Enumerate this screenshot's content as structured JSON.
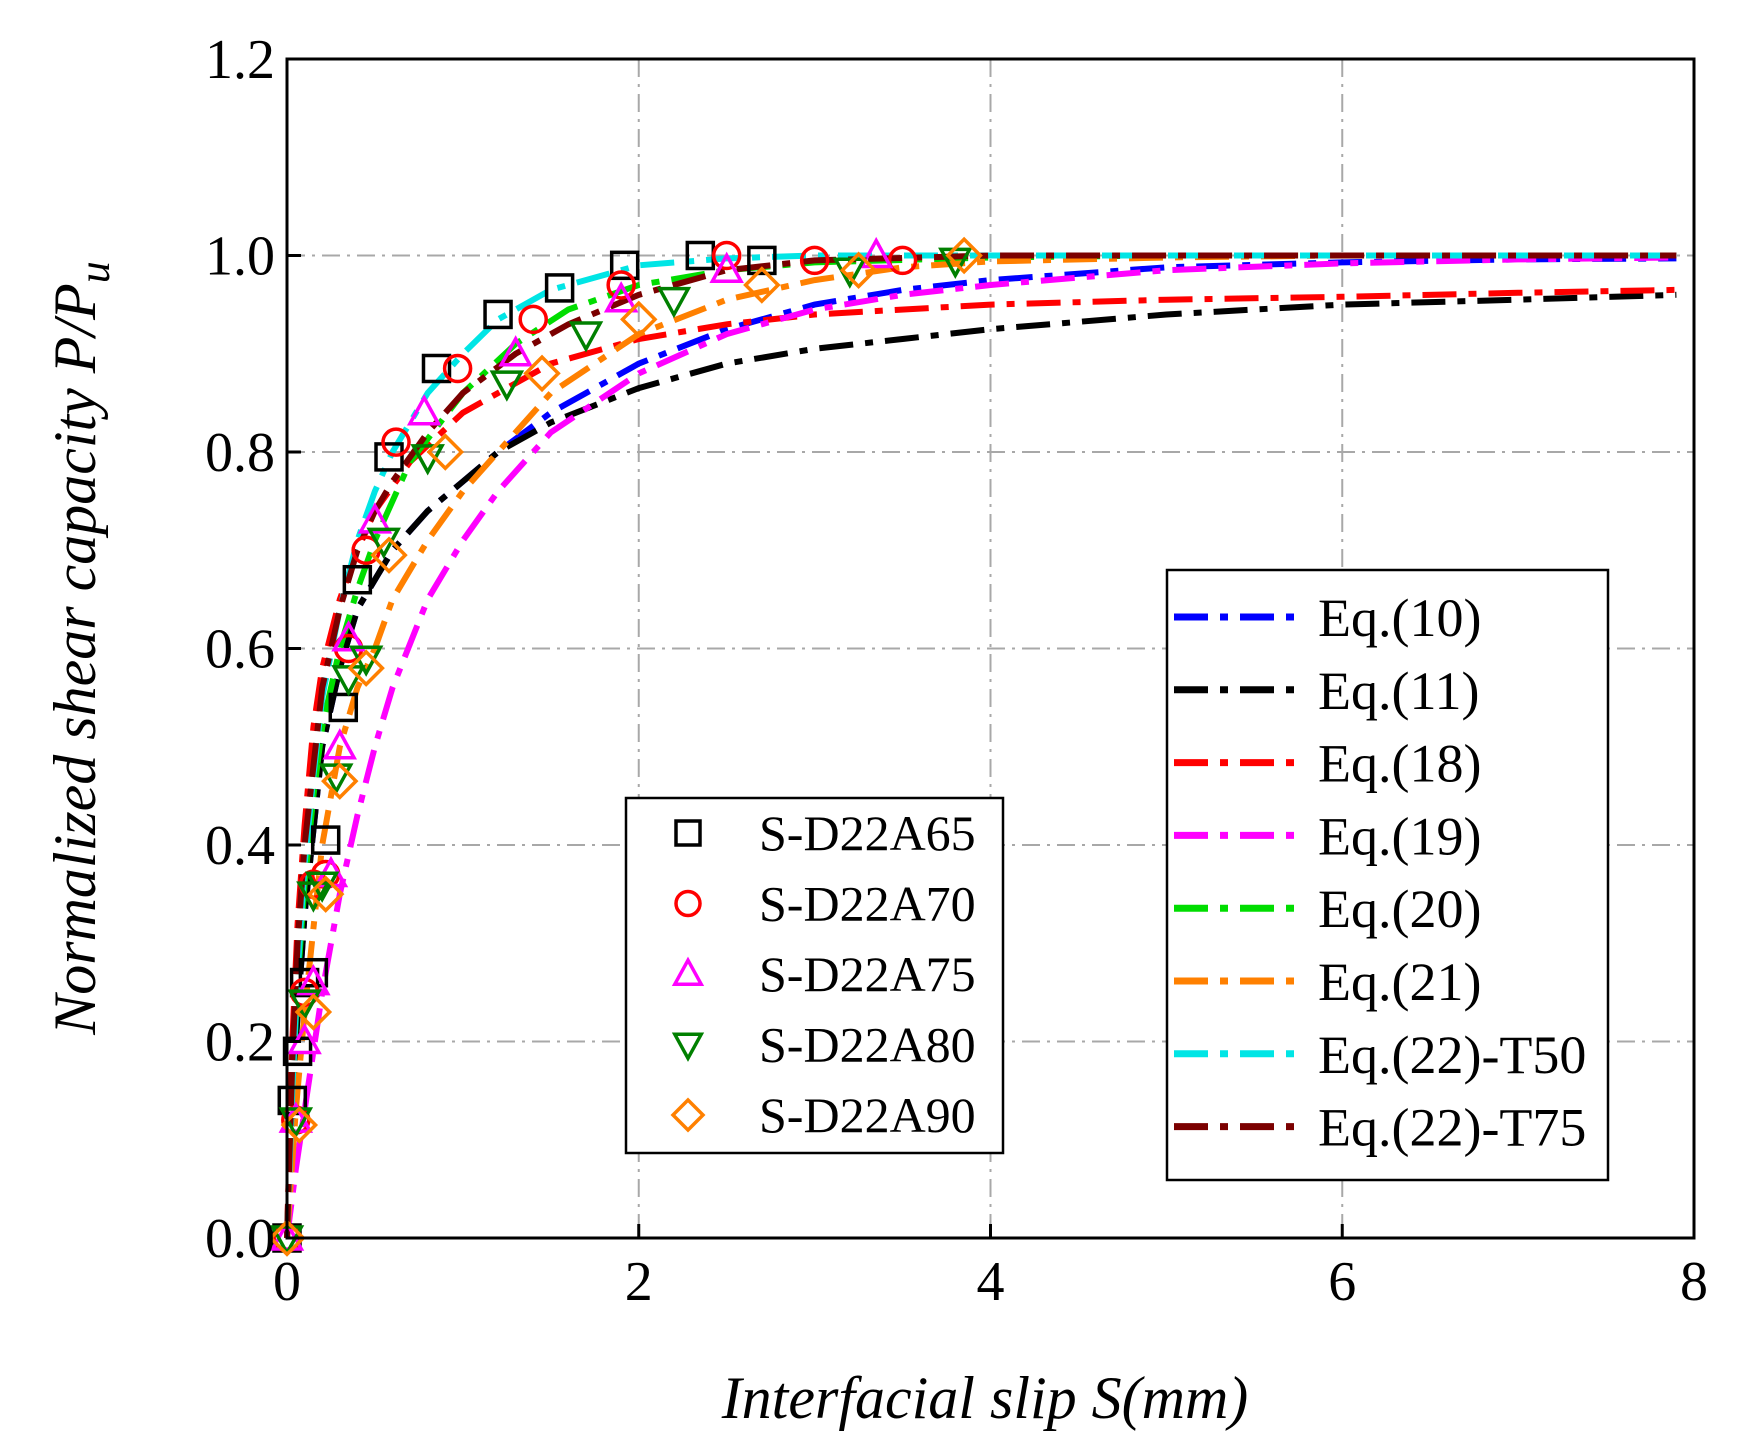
{
  "chart_data": {
    "type": "scatter",
    "title": "",
    "xlabel": "Interfacial slip S(mm)",
    "ylabel_main": "Normalized shear capacity P/P",
    "ylabel_sub": "u",
    "xlim": [
      0,
      8
    ],
    "ylim": [
      0,
      1.2
    ],
    "x_ticks": [
      0,
      2,
      4,
      6,
      8
    ],
    "x_tick_labels": [
      "0",
      "2",
      "4",
      "6",
      "8"
    ],
    "y_ticks": [
      0,
      0.2,
      0.4,
      0.6,
      0.8,
      1.0,
      1.2
    ],
    "y_tick_labels": [
      "0.0",
      "0.2",
      "0.4",
      "0.6",
      "0.8",
      "1.0",
      "1.2"
    ],
    "grid": true,
    "scatter_series": [
      {
        "name": "S-D22A65",
        "marker": "square",
        "color": "#000000",
        "x": [
          0,
          0.03,
          0.06,
          0.1,
          0.15,
          0.22,
          0.32,
          0.4,
          0.58,
          0.85,
          1.2,
          1.55,
          1.92,
          2.35,
          2.7
        ],
        "y": [
          0,
          0.14,
          0.19,
          0.26,
          0.27,
          0.405,
          0.54,
          0.67,
          0.795,
          0.885,
          0.94,
          0.967,
          0.99,
          1.0,
          0.995
        ]
      },
      {
        "name": "S-D22A70",
        "marker": "circle",
        "color": "#ff0000",
        "x": [
          0,
          0.05,
          0.1,
          0.15,
          0.22,
          0.35,
          0.45,
          0.62,
          0.97,
          1.4,
          1.9,
          2.5,
          3.0,
          3.5
        ],
        "y": [
          0,
          0.12,
          0.25,
          0.36,
          0.37,
          0.6,
          0.7,
          0.81,
          0.885,
          0.935,
          0.97,
          1.0,
          0.995,
          0.995
        ]
      },
      {
        "name": "S-D22A75",
        "marker": "triangle-up",
        "color": "#ff00ff",
        "x": [
          0,
          0.05,
          0.1,
          0.15,
          0.25,
          0.3,
          0.35,
          0.5,
          0.78,
          1.3,
          1.9,
          2.5,
          3.35
        ],
        "y": [
          0,
          0.12,
          0.2,
          0.26,
          0.37,
          0.5,
          0.61,
          0.73,
          0.84,
          0.9,
          0.955,
          0.985,
          1.0
        ]
      },
      {
        "name": "S-D22A80",
        "marker": "triangle-down",
        "color": "#008000",
        "x": [
          0,
          0.05,
          0.1,
          0.15,
          0.2,
          0.28,
          0.35,
          0.45,
          0.55,
          0.8,
          1.25,
          1.7,
          2.2,
          3.2,
          3.8
        ],
        "y": [
          0,
          0.12,
          0.24,
          0.35,
          0.36,
          0.47,
          0.57,
          0.59,
          0.71,
          0.795,
          0.87,
          0.92,
          0.955,
          0.985,
          0.995
        ]
      },
      {
        "name": "S-D22A90",
        "marker": "diamond",
        "color": "#ff8000",
        "x": [
          0,
          0.07,
          0.15,
          0.22,
          0.3,
          0.45,
          0.58,
          0.9,
          1.45,
          2.0,
          2.7,
          3.25,
          3.85
        ],
        "y": [
          0,
          0.115,
          0.23,
          0.35,
          0.465,
          0.58,
          0.695,
          0.8,
          0.88,
          0.935,
          0.97,
          0.985,
          1.0
        ]
      }
    ],
    "line_series": [
      {
        "name": "Eq.(10)",
        "color": "#0000ff",
        "x": [
          0,
          0.05,
          0.1,
          0.2,
          0.3,
          0.4,
          0.5,
          0.6,
          0.8,
          1.0,
          1.2,
          1.5,
          2.0,
          2.5,
          3.0,
          3.5,
          4.0,
          5.0,
          6.0,
          7.0,
          7.9
        ],
        "y": [
          0,
          0.2,
          0.33,
          0.5,
          0.58,
          0.64,
          0.67,
          0.7,
          0.74,
          0.77,
          0.8,
          0.84,
          0.89,
          0.925,
          0.95,
          0.965,
          0.975,
          0.988,
          0.993,
          0.996,
          0.997
        ]
      },
      {
        "name": "Eq.(11)",
        "color": "#000000",
        "x": [
          0,
          0.05,
          0.1,
          0.2,
          0.3,
          0.4,
          0.5,
          0.6,
          0.8,
          1.0,
          1.2,
          1.5,
          2.0,
          2.5,
          3.0,
          3.5,
          4.0,
          5.0,
          6.0,
          7.0,
          7.9
        ],
        "y": [
          0,
          0.2,
          0.33,
          0.5,
          0.58,
          0.64,
          0.67,
          0.7,
          0.74,
          0.77,
          0.8,
          0.83,
          0.865,
          0.89,
          0.905,
          0.915,
          0.925,
          0.94,
          0.95,
          0.955,
          0.96
        ]
      },
      {
        "name": "Eq.(18)",
        "color": "#ff0000",
        "x": [
          0,
          0.03,
          0.06,
          0.1,
          0.15,
          0.2,
          0.3,
          0.4,
          0.5,
          0.7,
          1.0,
          1.5,
          2.0,
          2.5,
          3.0,
          4.0,
          5.0,
          6.0,
          7.0,
          7.9
        ],
        "y": [
          0,
          0.2,
          0.32,
          0.42,
          0.52,
          0.58,
          0.65,
          0.7,
          0.74,
          0.79,
          0.84,
          0.89,
          0.915,
          0.93,
          0.94,
          0.95,
          0.955,
          0.958,
          0.962,
          0.965
        ]
      },
      {
        "name": "Eq.(19)",
        "color": "#ff00ff",
        "x": [
          0,
          0.05,
          0.1,
          0.2,
          0.3,
          0.4,
          0.5,
          0.6,
          0.8,
          1.0,
          1.2,
          1.5,
          2.0,
          2.5,
          3.0,
          3.5,
          4.0,
          5.0,
          6.0,
          7.0,
          7.9
        ],
        "y": [
          0,
          0.07,
          0.13,
          0.25,
          0.35,
          0.43,
          0.5,
          0.56,
          0.65,
          0.71,
          0.76,
          0.82,
          0.88,
          0.92,
          0.945,
          0.96,
          0.97,
          0.985,
          0.992,
          0.996,
          0.998
        ]
      },
      {
        "name": "Eq.(20)",
        "color": "#00dd00",
        "x": [
          0,
          0.03,
          0.06,
          0.1,
          0.15,
          0.2,
          0.3,
          0.4,
          0.5,
          0.7,
          1.0,
          1.3,
          1.6,
          2.0,
          2.5,
          3.0,
          4.0,
          5.0,
          6.0,
          7.0,
          7.9
        ],
        "y": [
          0,
          0.15,
          0.26,
          0.36,
          0.45,
          0.52,
          0.6,
          0.66,
          0.71,
          0.79,
          0.86,
          0.91,
          0.945,
          0.97,
          0.985,
          0.993,
          0.998,
          1.0,
          1.0,
          1.0,
          1.0
        ]
      },
      {
        "name": "Eq.(21)",
        "color": "#ff8000",
        "x": [
          0,
          0.05,
          0.1,
          0.2,
          0.3,
          0.4,
          0.5,
          0.6,
          0.8,
          1.0,
          1.2,
          1.5,
          2.0,
          2.5,
          3.0,
          3.5,
          4.0,
          5.0,
          6.0,
          7.0,
          7.9
        ],
        "y": [
          0,
          0.13,
          0.23,
          0.4,
          0.5,
          0.56,
          0.6,
          0.65,
          0.71,
          0.76,
          0.8,
          0.86,
          0.92,
          0.955,
          0.975,
          0.988,
          0.994,
          0.998,
          1.0,
          1.0,
          1.0
        ]
      },
      {
        "name": "Eq.(22)-T50",
        "color": "#00e5e5",
        "x": [
          0,
          0.03,
          0.06,
          0.1,
          0.15,
          0.2,
          0.3,
          0.4,
          0.5,
          0.6,
          0.8,
          1.0,
          1.2,
          1.5,
          2.0,
          2.5,
          3.0,
          4.0,
          5.0,
          6.0,
          7.0,
          7.9
        ],
        "y": [
          0,
          0.15,
          0.27,
          0.38,
          0.47,
          0.55,
          0.64,
          0.71,
          0.76,
          0.8,
          0.86,
          0.9,
          0.935,
          0.965,
          0.99,
          0.997,
          1.0,
          1.0,
          1.0,
          1.0,
          1.0,
          1.0
        ]
      },
      {
        "name": "Eq.(22)-T75",
        "color": "#7b0000",
        "x": [
          0,
          0.03,
          0.06,
          0.1,
          0.15,
          0.2,
          0.3,
          0.4,
          0.5,
          0.6,
          0.8,
          1.0,
          1.3,
          1.6,
          2.0,
          2.5,
          3.0,
          4.0,
          5.0,
          6.0,
          7.0,
          7.9
        ],
        "y": [
          0,
          0.18,
          0.3,
          0.4,
          0.48,
          0.56,
          0.64,
          0.7,
          0.74,
          0.77,
          0.82,
          0.86,
          0.9,
          0.93,
          0.96,
          0.985,
          0.995,
          1.0,
          1.0,
          1.0,
          1.0,
          1.0
        ]
      }
    ],
    "legend_markers_placement": "bottom-center",
    "legend_lines_placement": "bottom-right"
  }
}
